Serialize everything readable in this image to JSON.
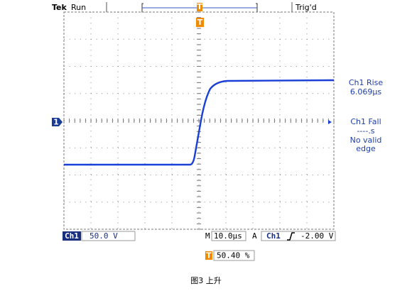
{
  "top_bar": {
    "brand": "Tek",
    "status": "Run",
    "trigger_state": "Trig'd",
    "trigger_marker": "T"
  },
  "channel_marker": "1",
  "measurements": [
    {
      "lines": [
        "Ch1 Rise",
        "6.069µs"
      ]
    },
    {
      "lines": [
        "Ch1 Fall",
        "----.s",
        "No valid",
        "edge"
      ]
    }
  ],
  "status_bar": {
    "channel": "Ch1",
    "scale": "50.0 V",
    "time_prefix": "M",
    "timebase": "10.0µs",
    "trigger_prefix": "A",
    "trigger_source": "Ch1",
    "trigger_level": "-2.00 V"
  },
  "trigger_position": {
    "value": "50.40 %"
  },
  "caption": "图3 上升"
}
